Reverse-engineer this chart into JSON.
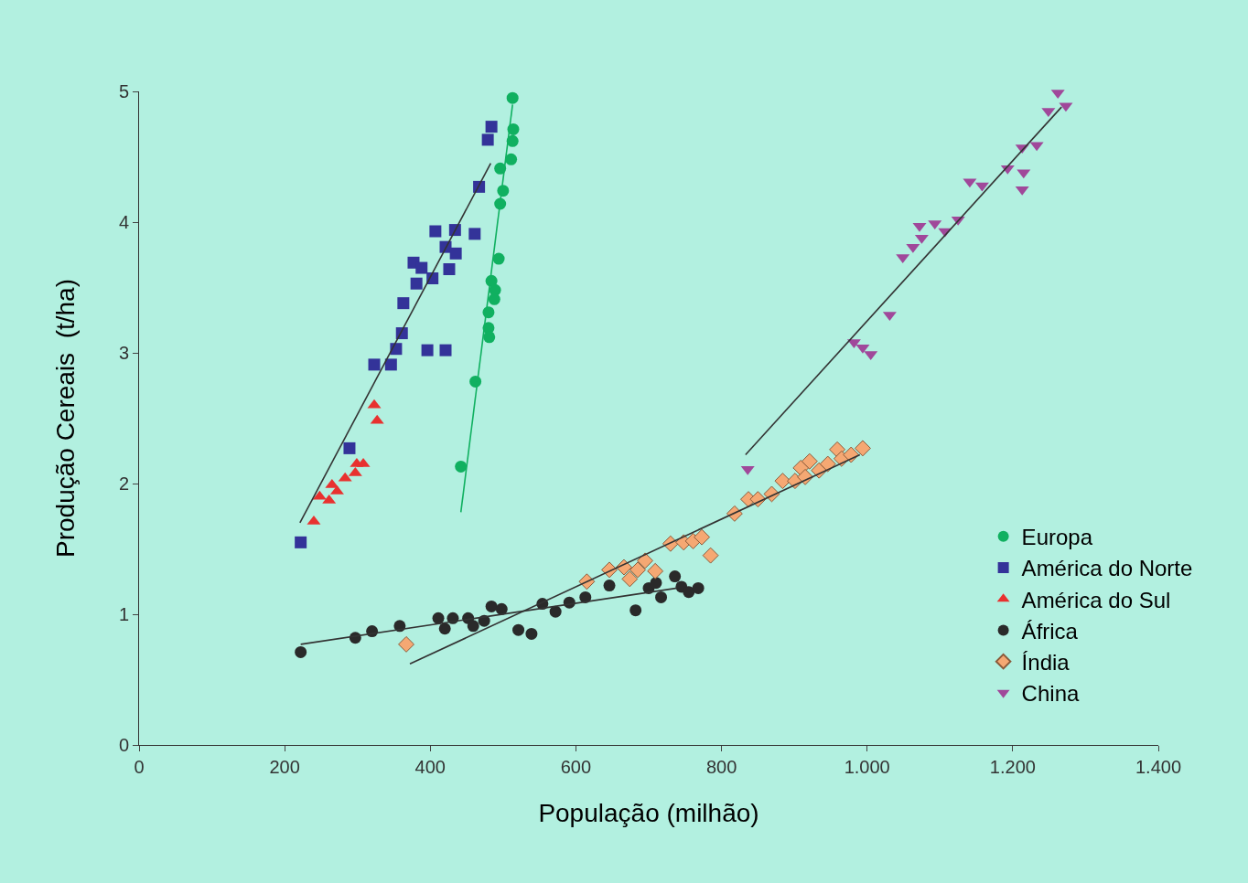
{
  "chart_data": {
    "type": "scatter",
    "xlabel": "População (milhão)",
    "ylabel": "Produção Cereais  (t/ha)",
    "xlim": [
      0,
      1400
    ],
    "ylim": [
      0,
      5
    ],
    "xticks": [
      0,
      200,
      400,
      600,
      800,
      {
        "value": 1000,
        "label": "1.000"
      },
      {
        "value": 1200,
        "label": "1.200"
      },
      {
        "value": 1400,
        "label": "1.400"
      }
    ],
    "yticks": [
      0,
      1,
      2,
      3,
      4,
      5
    ],
    "grid": false,
    "legend": "bottom right",
    "series": [
      {
        "name": "Europa",
        "color": "#10b060",
        "marker": "circle",
        "x": [
          513,
          514,
          513,
          511,
          496,
          500,
          496,
          494,
          484,
          489,
          488,
          480,
          480,
          481,
          462,
          442
        ],
        "values": [
          4.95,
          4.71,
          4.62,
          4.48,
          4.41,
          4.24,
          4.14,
          3.72,
          3.55,
          3.48,
          3.41,
          3.31,
          3.19,
          3.12,
          2.78,
          2.13
        ]
      },
      {
        "name": "América do Norte",
        "color": "#333399",
        "marker": "square",
        "x": [
          222,
          289,
          323,
          346,
          353,
          361,
          363,
          381,
          377,
          388,
          403,
          396,
          421,
          407,
          434,
          421,
          435,
          426,
          461,
          467,
          479,
          484
        ],
        "values": [
          1.55,
          2.27,
          2.91,
          2.91,
          3.03,
          3.15,
          3.38,
          3.53,
          3.69,
          3.65,
          3.57,
          3.02,
          3.02,
          3.93,
          3.94,
          3.81,
          3.76,
          3.64,
          3.91,
          4.27,
          4.63,
          4.73
        ]
      },
      {
        "name": "América do Sul",
        "color": "#e8312f",
        "marker": "triangle",
        "x": [
          240,
          248,
          261,
          265,
          272,
          283,
          297,
          299,
          308,
          323,
          327
        ],
        "values": [
          1.71,
          1.9,
          1.87,
          1.99,
          1.94,
          2.04,
          2.08,
          2.15,
          2.15,
          2.6,
          2.48
        ]
      },
      {
        "name": "África",
        "color": "#2a2a2a",
        "marker": "circle",
        "x": [
          222,
          297,
          320,
          358,
          411,
          431,
          420,
          452,
          459,
          474,
          484,
          498,
          521,
          539,
          554,
          572,
          591,
          613,
          646,
          682,
          700,
          710,
          717,
          736,
          745,
          755,
          768
        ],
        "values": [
          0.71,
          0.82,
          0.87,
          0.91,
          0.97,
          0.97,
          0.89,
          0.97,
          0.91,
          0.95,
          1.06,
          1.04,
          0.88,
          0.85,
          1.08,
          1.02,
          1.09,
          1.13,
          1.22,
          1.03,
          1.2,
          1.24,
          1.13,
          1.29,
          1.21,
          1.17,
          1.2
        ]
      },
      {
        "name": "Índia",
        "color": "#f5a873",
        "marker": "diamond",
        "x": [
          367,
          615,
          646,
          666,
          674,
          685,
          695,
          709,
          730,
          748,
          761,
          773,
          785,
          818,
          837,
          850,
          869,
          884,
          901,
          909,
          921,
          915,
          934,
          946,
          959,
          965,
          978,
          994
        ],
        "values": [
          0.77,
          1.25,
          1.34,
          1.36,
          1.27,
          1.34,
          1.41,
          1.33,
          1.54,
          1.55,
          1.56,
          1.59,
          1.45,
          1.77,
          1.88,
          1.88,
          1.92,
          2.02,
          2.02,
          2.12,
          2.17,
          2.05,
          2.1,
          2.15,
          2.26,
          2.19,
          2.22,
          2.27
        ]
      },
      {
        "name": "China",
        "color": "#a0489a",
        "marker": "triangle-down",
        "x": [
          836,
          982,
          994,
          1005,
          1031,
          1049,
          1063,
          1075,
          1072,
          1093,
          1107,
          1125,
          1141,
          1158,
          1193,
          1213,
          1215,
          1213,
          1233,
          1249,
          1262,
          1273
        ],
        "values": [
          2.11,
          3.08,
          3.04,
          2.99,
          3.29,
          3.73,
          3.81,
          3.88,
          3.97,
          3.99,
          3.93,
          4.02,
          4.31,
          4.28,
          4.41,
          4.57,
          4.38,
          4.25,
          4.59,
          4.85,
          4.99,
          4.89
        ]
      },
      {
        "type": "line",
        "color": "#10b060",
        "x": [
          442,
          513
        ],
        "values": [
          1.78,
          4.9
        ]
      },
      {
        "type": "line",
        "color": "#333333",
        "x": [
          221,
          483
        ],
        "values": [
          1.7,
          4.45
        ]
      },
      {
        "type": "line",
        "color": "#333333",
        "x": [
          222,
          739
        ],
        "values": [
          0.77,
          1.2
        ]
      },
      {
        "type": "line",
        "color": "#333333",
        "x": [
          372,
          990
        ],
        "values": [
          0.62,
          2.22
        ]
      },
      {
        "type": "line",
        "color": "#333333",
        "x": [
          833,
          1267
        ],
        "values": [
          2.22,
          4.88
        ]
      }
    ]
  }
}
